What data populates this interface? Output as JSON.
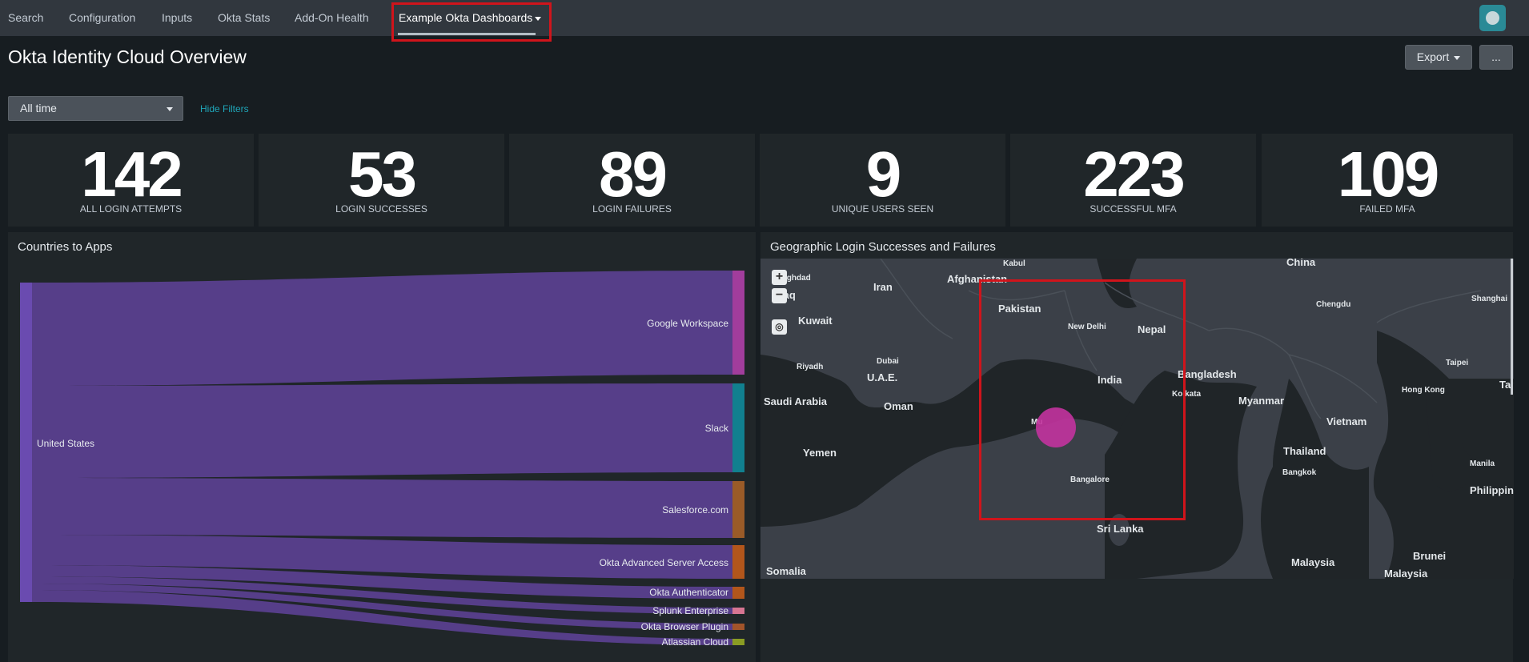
{
  "nav": {
    "items": [
      "Search",
      "Configuration",
      "Inputs",
      "Okta Stats",
      "Add-On Health"
    ],
    "active_label": "Example Okta Dashboards"
  },
  "page": {
    "title": "Okta Identity Cloud Overview",
    "export_label": "Export",
    "more_label": "..."
  },
  "filters": {
    "time_value": "All time",
    "hide_label": "Hide Filters"
  },
  "kpis": [
    {
      "value": "142",
      "label": "ALL LOGIN ATTEMPTS"
    },
    {
      "value": "53",
      "label": "LOGIN SUCCESSES"
    },
    {
      "value": "89",
      "label": "LOGIN FAILURES"
    },
    {
      "value": "9",
      "label": "UNIQUE USERS SEEN"
    },
    {
      "value": "223",
      "label": "SUCCESSFUL MFA"
    },
    {
      "value": "109",
      "label": "FAILED MFA"
    }
  ],
  "sankey_panel": {
    "title": "Countries to Apps",
    "source": "United States",
    "targets": [
      "Google Workspace",
      "Slack",
      "Salesforce.com",
      "Okta Advanced Server Access",
      "Okta Authenticator",
      "Splunk Enterprise",
      "Okta Browser Plugin",
      "Atlassian Cloud"
    ],
    "colors": {
      "flow": "#5a3f8e",
      "source": "#6a4bb0",
      "targets": [
        "#a13d9c",
        "#11808f",
        "#9a5b28",
        "#b2561b",
        "#b2561b",
        "#d77592",
        "#a2542a",
        "#8a9c23"
      ]
    }
  },
  "map_panel": {
    "title": "Geographic Login Successes and Failures",
    "labels": [
      "Kabul",
      "China",
      "Baghdad",
      "Iraq",
      "Iran",
      "Afghanistan",
      "Pakistan",
      "Chengdu",
      "Shanghai",
      "Kuwait",
      "New Delhi",
      "Nepal",
      "Dubai",
      "U.A.E.",
      "Riyadh",
      "India",
      "Bangladesh",
      "Taipei",
      "Saudi Arabia",
      "Oman",
      "Kolkata",
      "Myanmar",
      "Hong Kong",
      "Vietnam",
      "Mumbai",
      "Yemen",
      "Thailand",
      "Bangkok",
      "Manila",
      "Bangalore",
      "Philippines",
      "Sri Lanka",
      "Somalia",
      "Malaysia",
      "Brunei",
      "Malaysia",
      "Taiwan"
    ],
    "bubble_color": "#c3339f"
  }
}
